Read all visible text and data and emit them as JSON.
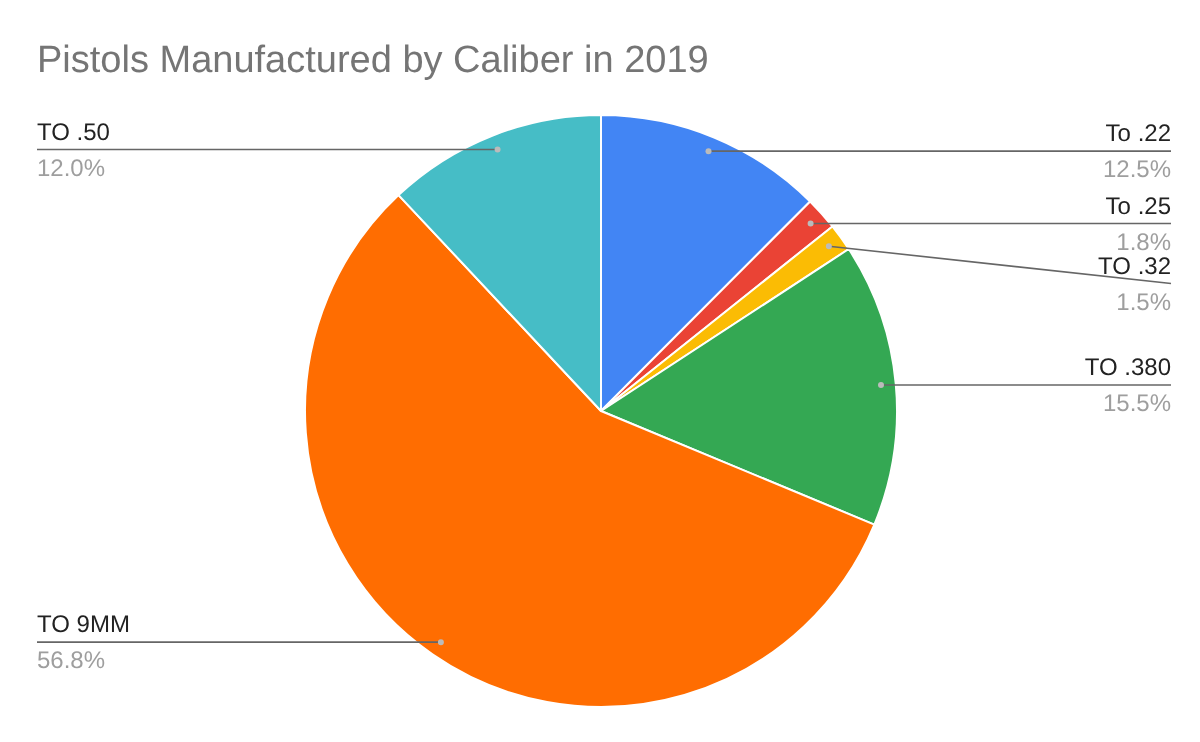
{
  "chart_data": {
    "type": "pie",
    "title": "Pistols Manufactured by Caliber in 2019",
    "categories": [
      "To .22",
      "To .25",
      "TO .32",
      "TO .380",
      "TO 9MM",
      "TO .50"
    ],
    "values": [
      12.5,
      1.8,
      1.5,
      15.5,
      56.8,
      12.0
    ],
    "colors": [
      "#4285f4",
      "#ea4335",
      "#fbbc04",
      "#34a853",
      "#ff6d01",
      "#46bdc6"
    ],
    "value_labels": [
      "12.5%",
      "1.8%",
      "1.5%",
      "15.5%",
      "56.8%",
      "12.0%"
    ]
  }
}
